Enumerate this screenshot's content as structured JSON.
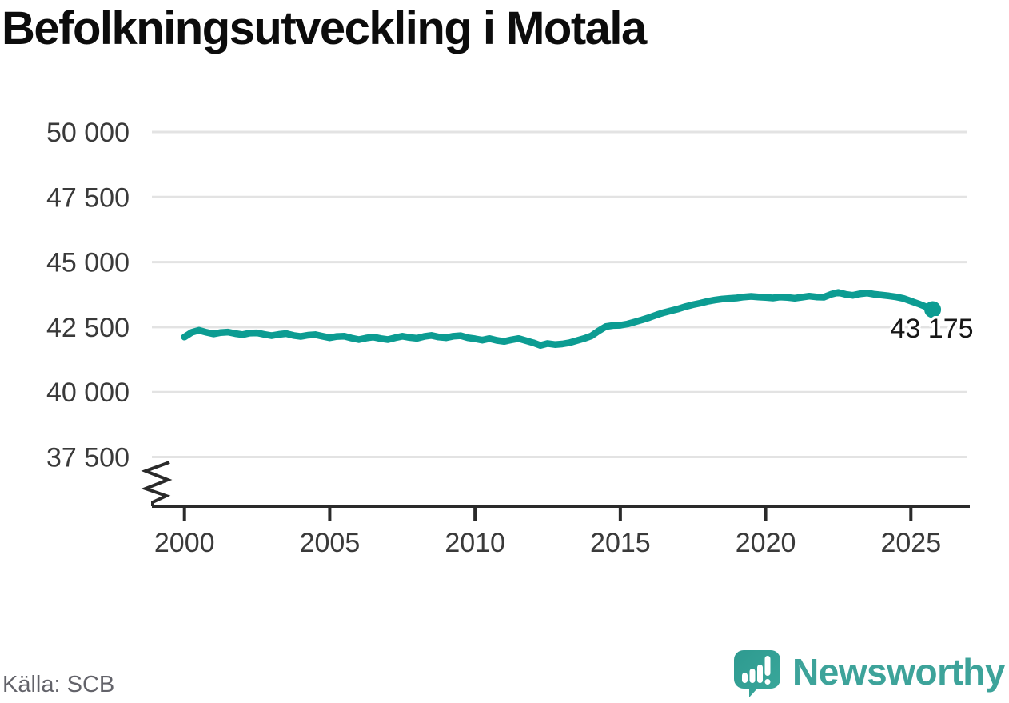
{
  "title": "Befolkningsutveckling i Motala",
  "source_note": "Källa: SCB",
  "brand": {
    "name": "Newsworthy",
    "wordmark_color": "#3da39a",
    "icon_color_top": "#2e9a90",
    "icon_color_bottom": "#3aa89b",
    "icon_glyph_color": "#ffffff"
  },
  "chart_data": {
    "type": "line",
    "title": "Befolkningsutveckling i Motala",
    "xlabel": "",
    "ylabel": "",
    "grid": "horizontal",
    "legend": "none",
    "axis_break": true,
    "ylim": [
      37500,
      50000
    ],
    "yticks": [
      50000,
      47500,
      45000,
      42500,
      40000,
      37500
    ],
    "ytick_labels": [
      "50 000",
      "47 500",
      "45 000",
      "42 500",
      "40 000",
      "37 500"
    ],
    "xticks": [
      2000,
      2005,
      2010,
      2015,
      2020,
      2025
    ],
    "xtick_labels": [
      "2000",
      "2005",
      "2010",
      "2015",
      "2020",
      "2025"
    ],
    "last_value": 43175,
    "last_value_label": "43 175",
    "line_color": "#0c9c92",
    "grid_color": "#e3e3e3",
    "axis_color": "#2a2a2a",
    "tick_label_color": "#3a3a3a",
    "value_label_color": "#171717",
    "x": [
      2000,
      2000.25,
      2000.5,
      2000.75,
      2001,
      2001.25,
      2001.5,
      2001.75,
      2002,
      2002.25,
      2002.5,
      2002.75,
      2003,
      2003.25,
      2003.5,
      2003.75,
      2004,
      2004.25,
      2004.5,
      2004.75,
      2005,
      2005.25,
      2005.5,
      2005.75,
      2006,
      2006.25,
      2006.5,
      2006.75,
      2007,
      2007.25,
      2007.5,
      2007.75,
      2008,
      2008.25,
      2008.5,
      2008.75,
      2009,
      2009.25,
      2009.5,
      2009.75,
      2010,
      2010.25,
      2010.5,
      2010.75,
      2011,
      2011.25,
      2011.5,
      2011.75,
      2012,
      2012.25,
      2012.5,
      2012.75,
      2013,
      2013.25,
      2013.5,
      2013.75,
      2014,
      2014.25,
      2014.5,
      2014.75,
      2015,
      2015.25,
      2015.5,
      2015.75,
      2016,
      2016.25,
      2016.5,
      2016.75,
      2017,
      2017.25,
      2017.5,
      2017.75,
      2018,
      2018.25,
      2018.5,
      2018.75,
      2019,
      2019.25,
      2019.5,
      2019.75,
      2020,
      2020.25,
      2020.5,
      2020.75,
      2021,
      2021.25,
      2021.5,
      2021.75,
      2022,
      2022.25,
      2022.5,
      2022.75,
      2023,
      2023.25,
      2023.5,
      2023.75,
      2024,
      2024.25,
      2024.5,
      2024.75,
      2025,
      2025.25,
      2025.5,
      2025.75
    ],
    "y": [
      42120,
      42300,
      42380,
      42300,
      42240,
      42290,
      42310,
      42250,
      42210,
      42270,
      42280,
      42220,
      42170,
      42220,
      42250,
      42180,
      42140,
      42190,
      42210,
      42150,
      42090,
      42140,
      42150,
      42080,
      42020,
      42080,
      42120,
      42060,
      42020,
      42090,
      42150,
      42100,
      42070,
      42140,
      42180,
      42120,
      42090,
      42150,
      42170,
      42090,
      42050,
      42000,
      42060,
      41990,
      41950,
      42010,
      42060,
      41980,
      41900,
      41800,
      41870,
      41830,
      41850,
      41900,
      41980,
      42060,
      42160,
      42350,
      42520,
      42560,
      42570,
      42620,
      42700,
      42780,
      42870,
      42970,
      43060,
      43130,
      43200,
      43290,
      43360,
      43420,
      43490,
      43540,
      43580,
      43600,
      43620,
      43660,
      43680,
      43660,
      43640,
      43620,
      43660,
      43640,
      43610,
      43650,
      43690,
      43660,
      43650,
      43760,
      43830,
      43760,
      43720,
      43780,
      43810,
      43760,
      43730,
      43700,
      43660,
      43600,
      43500,
      43400,
      43290,
      43175
    ]
  }
}
